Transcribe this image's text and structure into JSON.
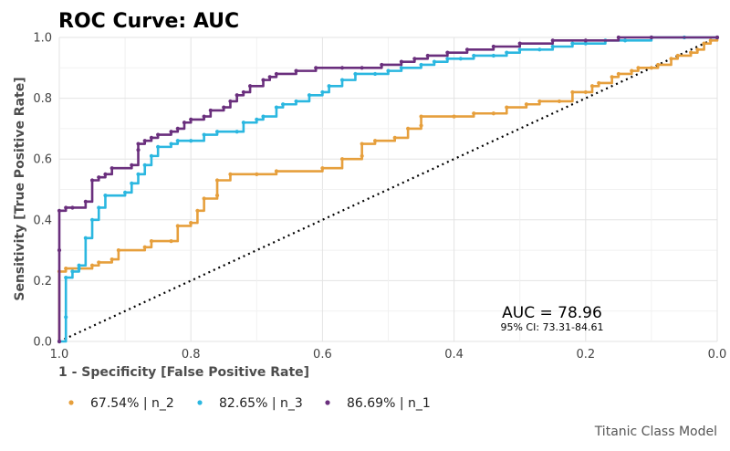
{
  "chart_data": {
    "type": "line",
    "title": "ROC Curve: AUC",
    "xlabel": "1 - Specificity [False Positive Rate]",
    "ylabel": "Sensitivity [True Positive Rate]",
    "xlim": [
      1.0,
      0.0
    ],
    "ylim": [
      0.0,
      1.0
    ],
    "x_ticks": [
      "1.0",
      "0.8",
      "0.6",
      "0.4",
      "0.2",
      "0.0"
    ],
    "y_ticks": [
      "0.0",
      "0.2",
      "0.4",
      "0.6",
      "0.8",
      "1.0"
    ],
    "grid": true,
    "annotation": {
      "auc_label": "AUC = 78.96",
      "ci_label": "95% CI: 73.31-84.61"
    },
    "caption": "Titanic Class Model",
    "legend_position": "bottom-left",
    "series": [
      {
        "name": "67.54% | n_2",
        "color": "#E69F3C",
        "points": [
          [
            1.0,
            0.0
          ],
          [
            1.0,
            0.23
          ],
          [
            0.99,
            0.24
          ],
          [
            0.95,
            0.25
          ],
          [
            0.94,
            0.26
          ],
          [
            0.92,
            0.27
          ],
          [
            0.91,
            0.3
          ],
          [
            0.87,
            0.31
          ],
          [
            0.86,
            0.33
          ],
          [
            0.83,
            0.33
          ],
          [
            0.82,
            0.38
          ],
          [
            0.8,
            0.39
          ],
          [
            0.79,
            0.43
          ],
          [
            0.78,
            0.47
          ],
          [
            0.76,
            0.48
          ],
          [
            0.76,
            0.53
          ],
          [
            0.74,
            0.55
          ],
          [
            0.7,
            0.55
          ],
          [
            0.67,
            0.56
          ],
          [
            0.6,
            0.57
          ],
          [
            0.57,
            0.6
          ],
          [
            0.54,
            0.61
          ],
          [
            0.54,
            0.65
          ],
          [
            0.52,
            0.66
          ],
          [
            0.49,
            0.67
          ],
          [
            0.47,
            0.7
          ],
          [
            0.45,
            0.71
          ],
          [
            0.45,
            0.74
          ],
          [
            0.4,
            0.74
          ],
          [
            0.37,
            0.75
          ],
          [
            0.34,
            0.75
          ],
          [
            0.32,
            0.77
          ],
          [
            0.29,
            0.78
          ],
          [
            0.27,
            0.79
          ],
          [
            0.24,
            0.79
          ],
          [
            0.22,
            0.82
          ],
          [
            0.2,
            0.82
          ],
          [
            0.19,
            0.84
          ],
          [
            0.18,
            0.85
          ],
          [
            0.16,
            0.87
          ],
          [
            0.15,
            0.88
          ],
          [
            0.13,
            0.89
          ],
          [
            0.12,
            0.9
          ],
          [
            0.1,
            0.9
          ],
          [
            0.09,
            0.91
          ],
          [
            0.07,
            0.93
          ],
          [
            0.06,
            0.94
          ],
          [
            0.04,
            0.95
          ],
          [
            0.03,
            0.96
          ],
          [
            0.02,
            0.98
          ],
          [
            0.01,
            0.99
          ],
          [
            0.0,
            1.0
          ]
        ]
      },
      {
        "name": "82.65% | n_3",
        "color": "#2BB7E0",
        "points": [
          [
            1.0,
            0.0
          ],
          [
            0.99,
            0.08
          ],
          [
            0.99,
            0.21
          ],
          [
            0.98,
            0.23
          ],
          [
            0.97,
            0.24
          ],
          [
            0.97,
            0.25
          ],
          [
            0.96,
            0.34
          ],
          [
            0.95,
            0.4
          ],
          [
            0.94,
            0.44
          ],
          [
            0.93,
            0.48
          ],
          [
            0.9,
            0.49
          ],
          [
            0.89,
            0.52
          ],
          [
            0.88,
            0.55
          ],
          [
            0.87,
            0.58
          ],
          [
            0.86,
            0.61
          ],
          [
            0.85,
            0.64
          ],
          [
            0.83,
            0.65
          ],
          [
            0.82,
            0.66
          ],
          [
            0.8,
            0.66
          ],
          [
            0.78,
            0.68
          ],
          [
            0.76,
            0.69
          ],
          [
            0.73,
            0.69
          ],
          [
            0.72,
            0.72
          ],
          [
            0.7,
            0.73
          ],
          [
            0.69,
            0.74
          ],
          [
            0.67,
            0.77
          ],
          [
            0.66,
            0.78
          ],
          [
            0.64,
            0.79
          ],
          [
            0.62,
            0.81
          ],
          [
            0.6,
            0.82
          ],
          [
            0.59,
            0.84
          ],
          [
            0.57,
            0.86
          ],
          [
            0.55,
            0.88
          ],
          [
            0.52,
            0.88
          ],
          [
            0.5,
            0.89
          ],
          [
            0.48,
            0.9
          ],
          [
            0.45,
            0.91
          ],
          [
            0.43,
            0.92
          ],
          [
            0.41,
            0.93
          ],
          [
            0.39,
            0.93
          ],
          [
            0.37,
            0.94
          ],
          [
            0.34,
            0.94
          ],
          [
            0.32,
            0.95
          ],
          [
            0.3,
            0.96
          ],
          [
            0.27,
            0.96
          ],
          [
            0.25,
            0.97
          ],
          [
            0.22,
            0.98
          ],
          [
            0.2,
            0.98
          ],
          [
            0.17,
            0.99
          ],
          [
            0.14,
            0.99
          ],
          [
            0.1,
            1.0
          ],
          [
            0.05,
            1.0
          ],
          [
            0.0,
            1.0
          ]
        ]
      },
      {
        "name": "86.69% | n_1",
        "color": "#6A2F7D",
        "points": [
          [
            1.0,
            0.0
          ],
          [
            1.0,
            0.3
          ],
          [
            1.0,
            0.43
          ],
          [
            0.99,
            0.44
          ],
          [
            0.98,
            0.44
          ],
          [
            0.96,
            0.46
          ],
          [
            0.95,
            0.53
          ],
          [
            0.94,
            0.54
          ],
          [
            0.93,
            0.55
          ],
          [
            0.92,
            0.57
          ],
          [
            0.89,
            0.58
          ],
          [
            0.88,
            0.63
          ],
          [
            0.88,
            0.65
          ],
          [
            0.87,
            0.66
          ],
          [
            0.86,
            0.67
          ],
          [
            0.85,
            0.68
          ],
          [
            0.83,
            0.69
          ],
          [
            0.82,
            0.7
          ],
          [
            0.81,
            0.72
          ],
          [
            0.8,
            0.73
          ],
          [
            0.78,
            0.74
          ],
          [
            0.77,
            0.76
          ],
          [
            0.75,
            0.77
          ],
          [
            0.74,
            0.79
          ],
          [
            0.73,
            0.81
          ],
          [
            0.72,
            0.82
          ],
          [
            0.71,
            0.84
          ],
          [
            0.69,
            0.86
          ],
          [
            0.68,
            0.87
          ],
          [
            0.67,
            0.88
          ],
          [
            0.64,
            0.89
          ],
          [
            0.61,
            0.9
          ],
          [
            0.57,
            0.9
          ],
          [
            0.54,
            0.9
          ],
          [
            0.51,
            0.91
          ],
          [
            0.48,
            0.92
          ],
          [
            0.46,
            0.93
          ],
          [
            0.44,
            0.94
          ],
          [
            0.41,
            0.95
          ],
          [
            0.38,
            0.96
          ],
          [
            0.34,
            0.97
          ],
          [
            0.3,
            0.98
          ],
          [
            0.25,
            0.99
          ],
          [
            0.2,
            0.99
          ],
          [
            0.15,
            1.0
          ],
          [
            0.1,
            1.0
          ],
          [
            0.0,
            1.0
          ]
        ]
      }
    ]
  }
}
